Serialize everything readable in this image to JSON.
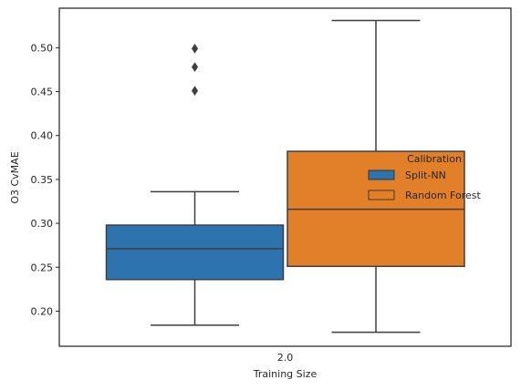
{
  "chart_data": {
    "type": "box",
    "categories": [
      "2.0"
    ],
    "xlabel": "Training Size",
    "ylabel": "O3 CvMAE",
    "ylim": [
      0.16,
      0.545
    ],
    "yticks": [
      "0.20",
      "0.25",
      "0.30",
      "0.35",
      "0.40",
      "0.45",
      "0.50"
    ],
    "ytick_values": [
      0.2,
      0.25,
      0.3,
      0.35,
      0.4,
      0.45,
      0.5
    ],
    "grid": false,
    "legend": {
      "title": "Calibration",
      "placement": "center-right"
    },
    "series": [
      {
        "name": "Split-NN",
        "color": "#2d73ad",
        "whisker_low": 0.184,
        "q1": 0.236,
        "median": 0.271,
        "q3": 0.298,
        "whisker_high": 0.336,
        "outliers": [
          0.451,
          0.478,
          0.499
        ]
      },
      {
        "name": "Random Forest",
        "color": "#e2802a",
        "whisker_low": 0.176,
        "q1": 0.251,
        "median": 0.316,
        "q3": 0.382,
        "whisker_high": 0.531,
        "outliers": []
      }
    ]
  }
}
